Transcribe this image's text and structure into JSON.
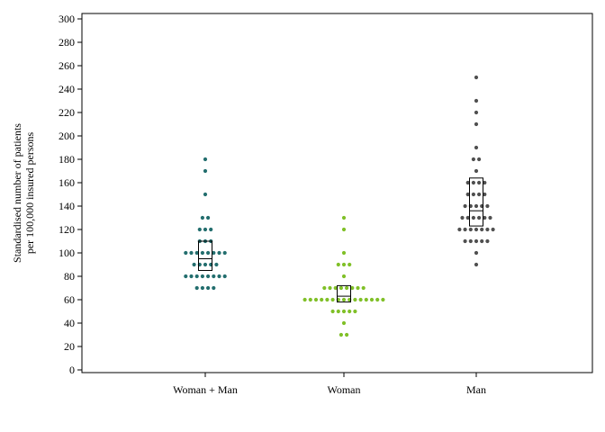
{
  "chart_data": {
    "type": "scatter",
    "subtype": "dot-strip with median and interquartile box",
    "ylabel_lines": [
      "Standardised number of patients",
      "per 100,000 insured persons"
    ],
    "xlabel": "",
    "ylim": [
      0,
      300
    ],
    "yticks": [
      0,
      20,
      40,
      60,
      80,
      100,
      120,
      140,
      160,
      180,
      200,
      220,
      240,
      260,
      280,
      300
    ],
    "grid": false,
    "categories": [
      "Woman + Man",
      "Woman",
      "Man"
    ],
    "series": [
      {
        "category": "Woman + Man",
        "color": "#236e6e",
        "points": [
          {
            "y": 180,
            "count": 1
          },
          {
            "y": 170,
            "count": 1
          },
          {
            "y": 150,
            "count": 1
          },
          {
            "y": 130,
            "count": 2
          },
          {
            "y": 120,
            "count": 3
          },
          {
            "y": 110,
            "count": 3
          },
          {
            "y": 100,
            "count": 8
          },
          {
            "y": 90,
            "count": 5
          },
          {
            "y": 80,
            "count": 8
          },
          {
            "y": 70,
            "count": 4
          }
        ],
        "box": {
          "q1": 85,
          "median": 95,
          "q3": 110
        }
      },
      {
        "category": "Woman",
        "color": "#80c028",
        "points": [
          {
            "y": 130,
            "count": 1
          },
          {
            "y": 120,
            "count": 1
          },
          {
            "y": 100,
            "count": 1
          },
          {
            "y": 90,
            "count": 3
          },
          {
            "y": 80,
            "count": 1
          },
          {
            "y": 70,
            "count": 8
          },
          {
            "y": 60,
            "count": 15
          },
          {
            "y": 50,
            "count": 5
          },
          {
            "y": 40,
            "count": 1
          },
          {
            "y": 30,
            "count": 2
          }
        ],
        "box": {
          "q1": 58,
          "median": 63,
          "q3": 72
        }
      },
      {
        "category": "Man",
        "color": "#505050",
        "points": [
          {
            "y": 250,
            "count": 1
          },
          {
            "y": 230,
            "count": 1
          },
          {
            "y": 220,
            "count": 1
          },
          {
            "y": 210,
            "count": 1
          },
          {
            "y": 190,
            "count": 1
          },
          {
            "y": 180,
            "count": 2
          },
          {
            "y": 170,
            "count": 1
          },
          {
            "y": 160,
            "count": 4
          },
          {
            "y": 150,
            "count": 4
          },
          {
            "y": 140,
            "count": 5
          },
          {
            "y": 130,
            "count": 6
          },
          {
            "y": 120,
            "count": 7
          },
          {
            "y": 110,
            "count": 5
          },
          {
            "y": 100,
            "count": 1
          },
          {
            "y": 90,
            "count": 1
          }
        ],
        "box": {
          "q1": 123,
          "median": 136,
          "q3": 164
        }
      }
    ]
  }
}
